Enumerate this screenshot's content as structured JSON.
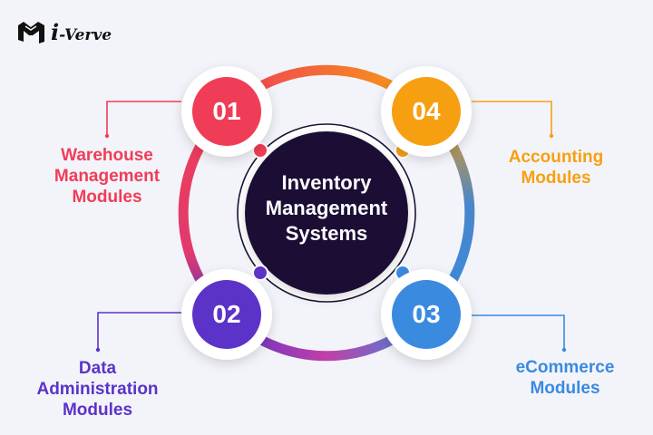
{
  "brand": {
    "logo_initial": "i",
    "name": "-Verve"
  },
  "center": {
    "lines": [
      "Inventory",
      "Management",
      "Systems"
    ]
  },
  "modules": [
    {
      "number": "01",
      "lines": [
        "Warehouse",
        "Management",
        "Modules"
      ],
      "color": "#f03d57"
    },
    {
      "number": "02",
      "lines": [
        "Data",
        "Administration",
        "Modules"
      ],
      "color": "#5b33c8"
    },
    {
      "number": "03",
      "lines": [
        "eCommerce",
        "Modules"
      ],
      "color": "#3a8ae0"
    },
    {
      "number": "04",
      "lines": [
        "Accounting",
        "Modules"
      ],
      "color": "#f6a011"
    }
  ],
  "colors": {
    "center_fill": "#1a1134",
    "background": "#f3f4fa",
    "ring_gradient": [
      "#f03d57",
      "#f6a011",
      "#3a8ae0",
      "#5b33c8"
    ]
  },
  "icons": {
    "logo": "m-cube-logo-icon"
  }
}
